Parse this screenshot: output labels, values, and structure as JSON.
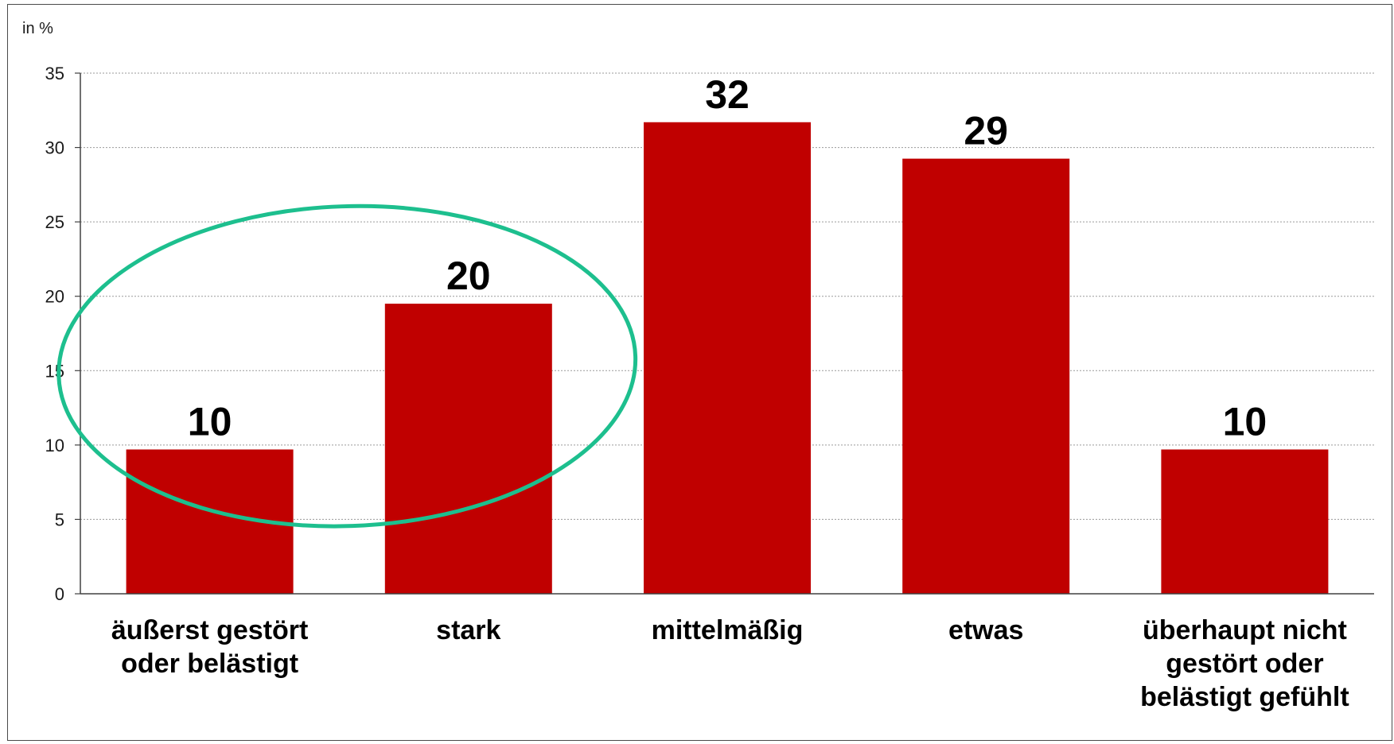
{
  "chart_data": {
    "type": "bar",
    "title": "",
    "xlabel": "",
    "ylabel": "in %",
    "ylim": [
      0,
      35
    ],
    "yticks": [
      0,
      5,
      10,
      15,
      20,
      25,
      30,
      35
    ],
    "grid": true,
    "legend": "none",
    "categories": [
      [
        "äußerst gestört",
        "oder belästigt"
      ],
      [
        "stark"
      ],
      [
        "mittelmäßig"
      ],
      [
        "etwas"
      ],
      [
        "überhaupt nicht",
        "gestört oder",
        "belästigt gefühlt"
      ]
    ],
    "values": [
      10,
      20,
      32,
      29,
      10
    ],
    "bar_heights": [
      9.7,
      19.5,
      31.7,
      29.25,
      9.7
    ],
    "value_labels": [
      "10",
      "20",
      "32",
      "29",
      "10"
    ],
    "colors": {
      "bar": "#c00000",
      "highlight_ellipse": "#1dbf8e",
      "grid": "#9a9a9a",
      "axis": "#404040"
    },
    "annotation": {
      "type": "ellipse",
      "highlights_categories": [
        0,
        1
      ]
    }
  }
}
